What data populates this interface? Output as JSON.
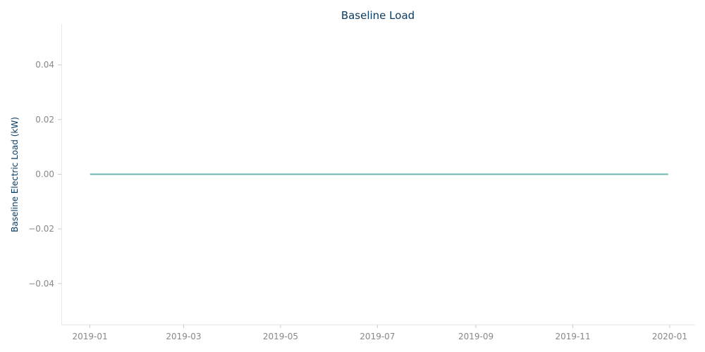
{
  "chart_data": {
    "type": "line",
    "title": "Baseline Load",
    "xlabel": "",
    "ylabel": "Baseline Electric Load (kW)",
    "x_ticks": [
      "2019-01",
      "2019-03",
      "2019-05",
      "2019-07",
      "2019-09",
      "2019-11",
      "2020-01"
    ],
    "y_ticks": [
      "0.04",
      "0.02",
      "0.00",
      "−0.02",
      "−0.04"
    ],
    "ylim": [
      -0.055,
      0.055
    ],
    "xlim": [
      "2018-12-14",
      "2020-01-17"
    ],
    "grid": false,
    "series": [
      {
        "color": "#6cb6b0",
        "x": [
          "2019-01-01",
          "2019-12-31"
        ],
        "y": [
          0.0,
          0.0
        ]
      }
    ]
  }
}
